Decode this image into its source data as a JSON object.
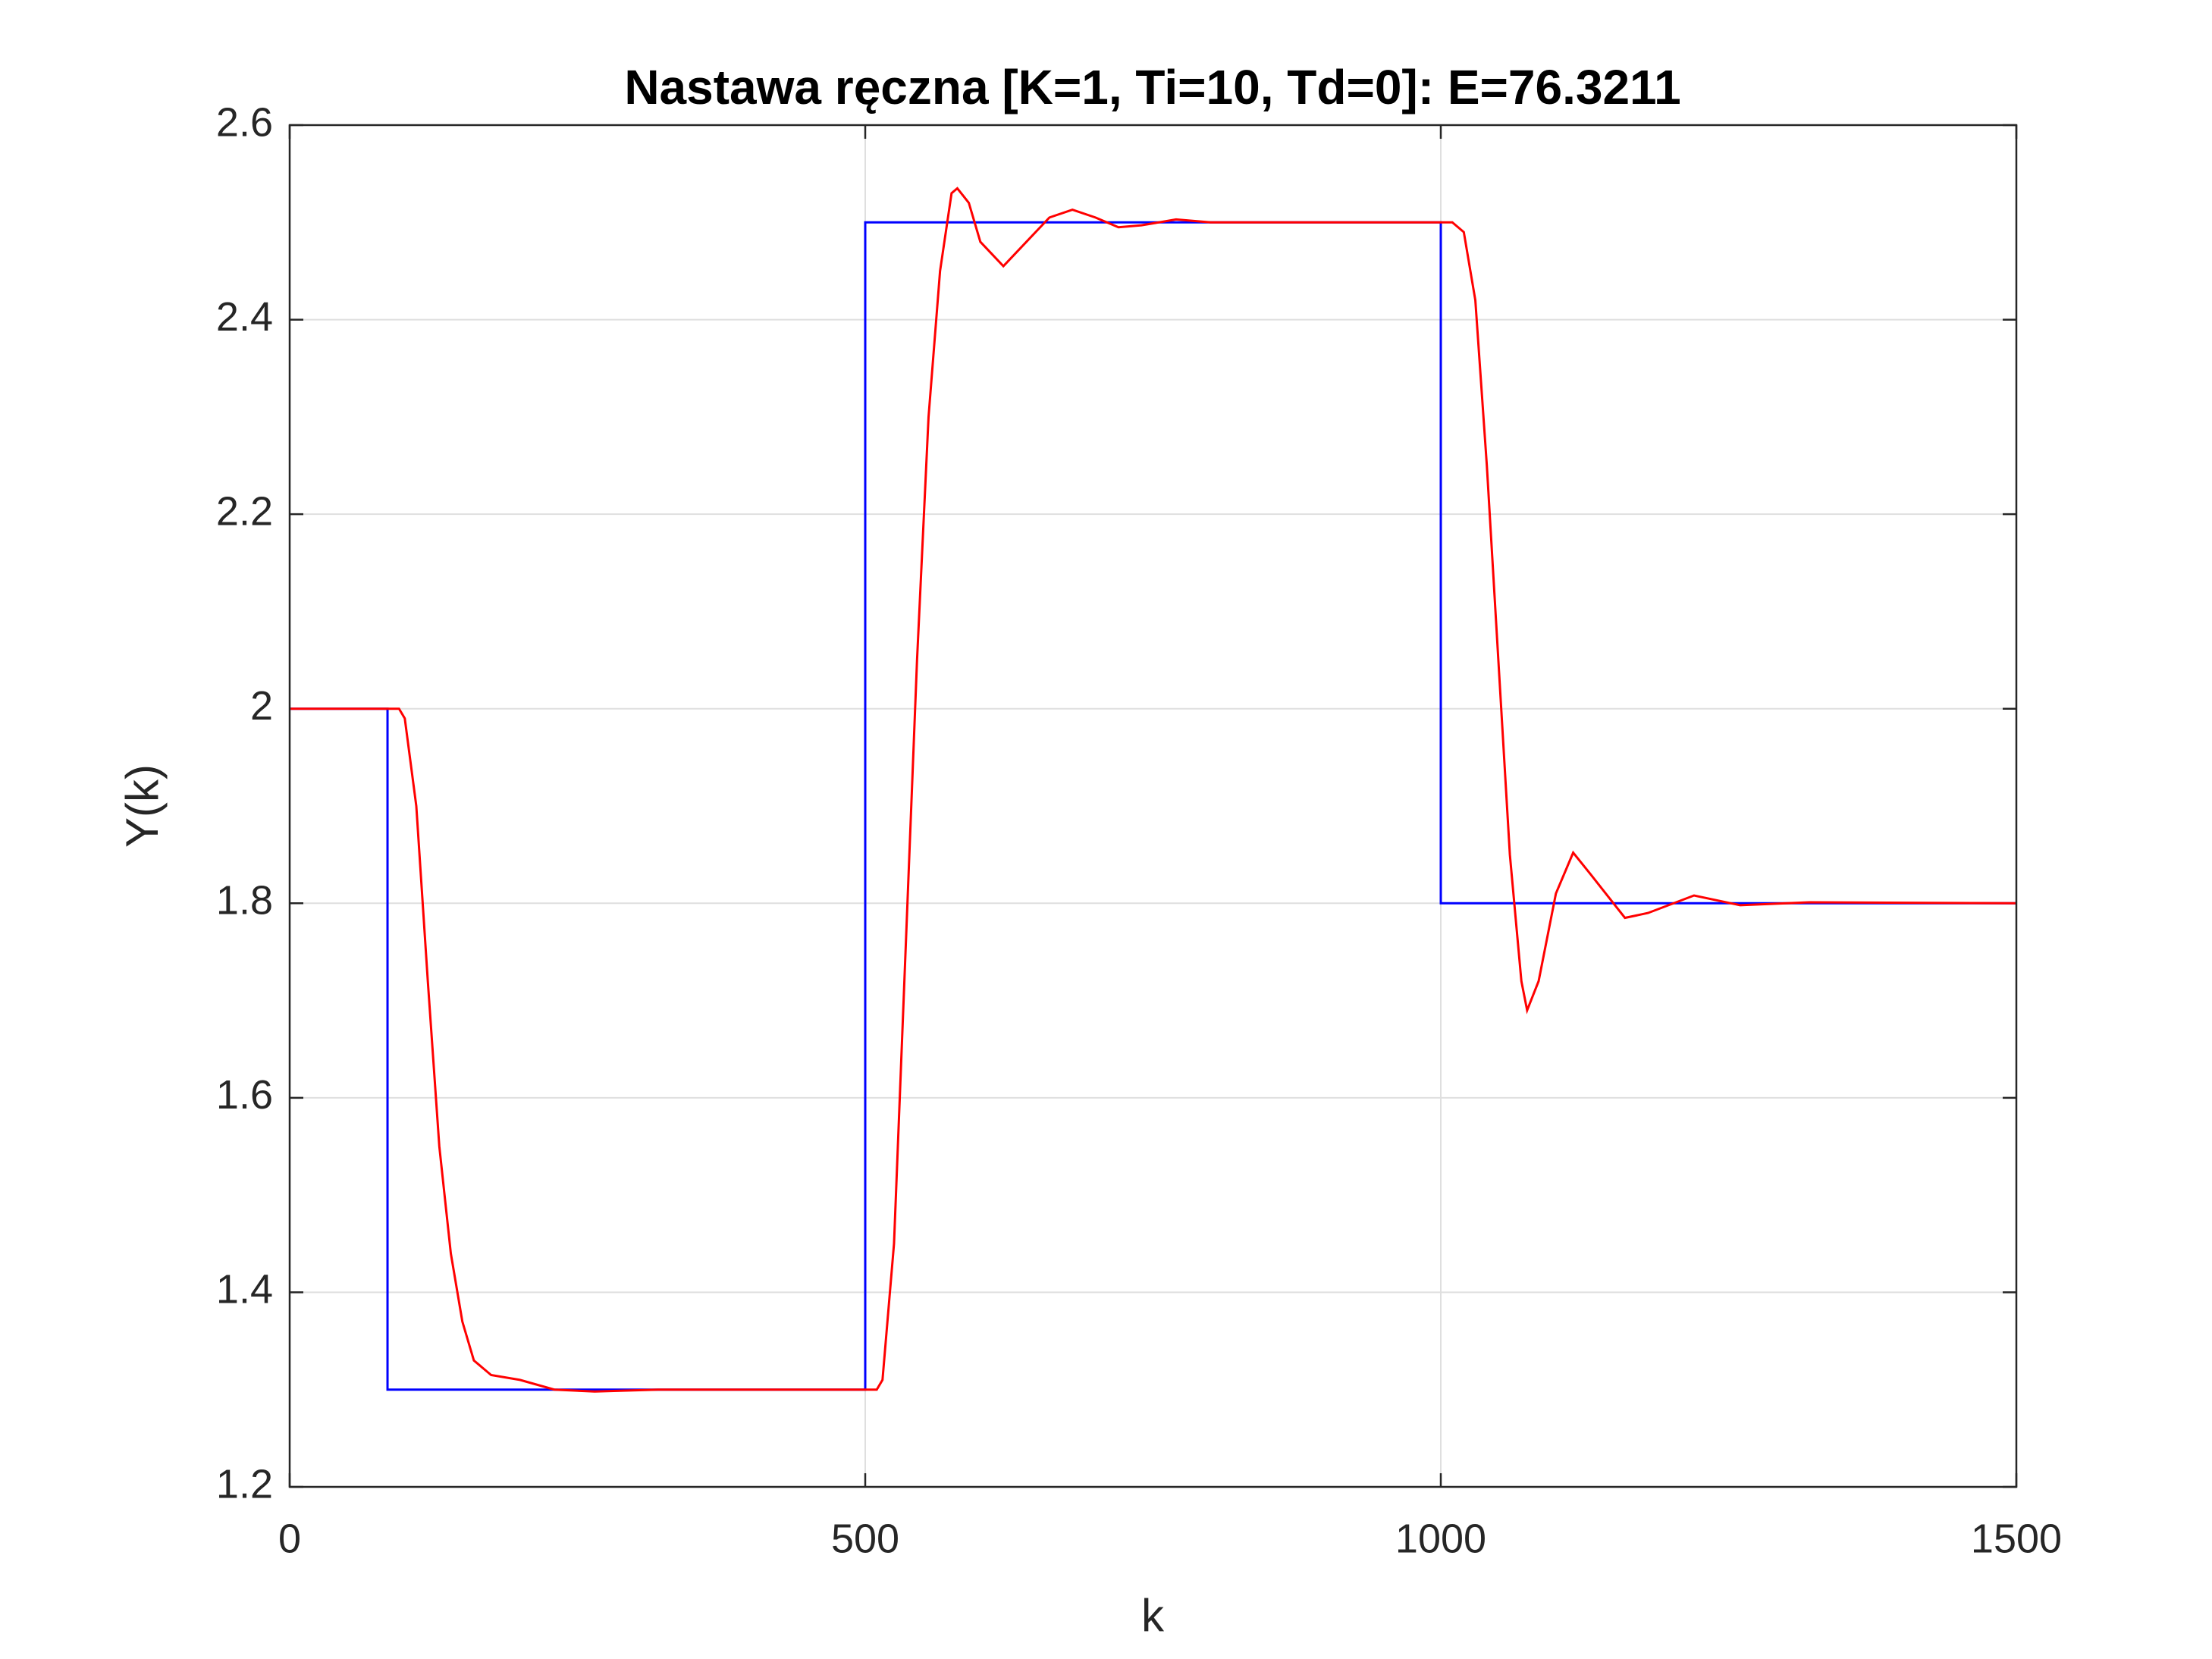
{
  "chart_data": {
    "type": "line",
    "title": "Nastawa ręczna [K=1, Ti=10, Td=0]: E=76.3211",
    "x_label": "k",
    "y_label": "Y(k)",
    "xlim": [
      0,
      1500
    ],
    "xticks": [
      0,
      500,
      1000,
      1500
    ],
    "ylim": [
      1.2,
      2.6
    ],
    "yticks": [
      1.2,
      1.4,
      1.6,
      1.8,
      2,
      2.2,
      2.4,
      2.6
    ],
    "grid": true,
    "series": [
      {
        "color": "#0000ff",
        "x": [
          0,
          85,
          85,
          500,
          500,
          1000,
          1000,
          1500
        ],
        "values": [
          2,
          2,
          1.3,
          1.3,
          2.5,
          2.5,
          1.8,
          1.8
        ]
      },
      {
        "color": "#ff0000",
        "x": [
          0,
          95,
          100,
          110,
          120,
          130,
          140,
          150,
          160,
          175,
          200,
          230,
          265,
          320,
          500,
          510,
          515,
          525,
          535,
          545,
          555,
          565,
          575,
          580,
          590,
          600,
          620,
          640,
          660,
          680,
          700,
          720,
          740,
          770,
          800,
          1000,
          1010,
          1020,
          1030,
          1040,
          1050,
          1060,
          1070,
          1075,
          1085,
          1100,
          1115,
          1130,
          1160,
          1180,
          1220,
          1260,
          1320,
          1500
        ],
        "values": [
          2,
          2,
          1.99,
          1.9,
          1.72,
          1.55,
          1.44,
          1.37,
          1.33,
          1.315,
          1.31,
          1.3,
          1.298,
          1.3,
          1.3,
          1.3,
          1.31,
          1.45,
          1.75,
          2.05,
          2.3,
          2.45,
          2.53,
          2.535,
          2.52,
          2.48,
          2.455,
          2.48,
          2.505,
          2.513,
          2.505,
          2.495,
          2.497,
          2.503,
          2.5,
          2.5,
          2.5,
          2.49,
          2.42,
          2.25,
          2.05,
          1.85,
          1.72,
          1.69,
          1.72,
          1.81,
          1.852,
          1.83,
          1.785,
          1.79,
          1.808,
          1.798,
          1.801,
          1.8
        ]
      }
    ]
  }
}
